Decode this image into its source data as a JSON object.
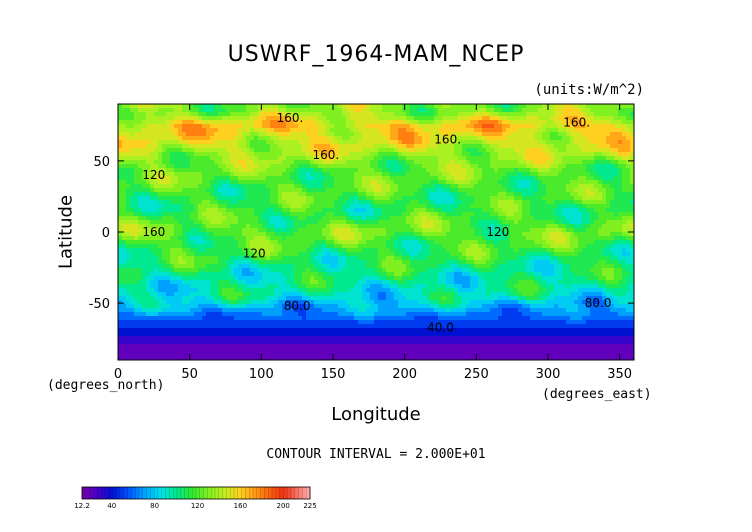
{
  "chart_data": {
    "type": "heatmap",
    "title": "USWRF_1964-MAM_NCEP",
    "units": "(units:W/m^2)",
    "xlabel": "Longitude",
    "ylabel": "Latitude",
    "x_unit_label": "(degrees_north)",
    "x_unit_label_right": "(degrees_east)",
    "xlim": [
      0,
      360
    ],
    "ylim": [
      -90,
      90
    ],
    "x_ticks": [
      0,
      50,
      100,
      150,
      200,
      250,
      300,
      350
    ],
    "y_ticks": [
      -50,
      0,
      50
    ],
    "contour_interval_text": "CONTOUR INTERVAL = 2.000E+01",
    "contour_labels": [
      {
        "text": "160.",
        "lon": 120,
        "lat": 80
      },
      {
        "text": "160.",
        "lon": 230,
        "lat": 65
      },
      {
        "text": "160.",
        "lon": 320,
        "lat": 77
      },
      {
        "text": "160.",
        "lon": 145,
        "lat": 54
      },
      {
        "text": "120",
        "lon": 25,
        "lat": 40
      },
      {
        "text": "160",
        "lon": 25,
        "lat": 0
      },
      {
        "text": "120",
        "lon": 95,
        "lat": -15
      },
      {
        "text": "120",
        "lon": 265,
        "lat": 0
      },
      {
        "text": "80.0",
        "lon": 125,
        "lat": -52
      },
      {
        "text": "80.0",
        "lon": 335,
        "lat": -50
      },
      {
        "text": "40.0",
        "lon": 225,
        "lat": -67
      }
    ],
    "zonal_mean_by_lat": [
      {
        "lat": 85,
        "value": 130
      },
      {
        "lat": 75,
        "value": 160
      },
      {
        "lat": 60,
        "value": 145
      },
      {
        "lat": 45,
        "value": 125
      },
      {
        "lat": 30,
        "value": 118
      },
      {
        "lat": 15,
        "value": 112
      },
      {
        "lat": 0,
        "value": 125
      },
      {
        "lat": -15,
        "value": 112
      },
      {
        "lat": -30,
        "value": 100
      },
      {
        "lat": -45,
        "value": 92
      },
      {
        "lat": -55,
        "value": 70
      },
      {
        "lat": -62,
        "value": 55
      },
      {
        "lat": -70,
        "value": 40
      },
      {
        "lat": -80,
        "value": 25
      },
      {
        "lat": -88,
        "value": 15
      }
    ],
    "colorbar": {
      "min": 12.2,
      "max": 225,
      "tick_labels": [
        "12.2",
        "40",
        "80",
        "120",
        "160",
        "200",
        "225"
      ],
      "tick_values": [
        12.2,
        40,
        80,
        120,
        160,
        200,
        225
      ]
    },
    "colormap": [
      {
        "value": 12.2,
        "color": "#7a00a8"
      },
      {
        "value": 25,
        "color": "#5000c8"
      },
      {
        "value": 40,
        "color": "#0010d0"
      },
      {
        "value": 55,
        "color": "#0050ff"
      },
      {
        "value": 70,
        "color": "#00a0ff"
      },
      {
        "value": 85,
        "color": "#00e0f0"
      },
      {
        "value": 100,
        "color": "#00e890"
      },
      {
        "value": 115,
        "color": "#30e830"
      },
      {
        "value": 130,
        "color": "#80f020"
      },
      {
        "value": 145,
        "color": "#c0f020"
      },
      {
        "value": 160,
        "color": "#ffd020"
      },
      {
        "value": 180,
        "color": "#ff8010"
      },
      {
        "value": 200,
        "color": "#f03010"
      },
      {
        "value": 225,
        "color": "#ffb0b0"
      }
    ]
  }
}
